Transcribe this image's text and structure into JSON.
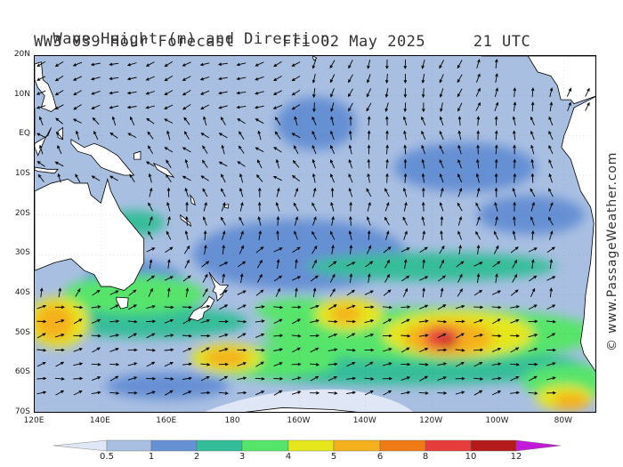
{
  "header": {
    "title_prefix": "Wave Height (m) and Direction",
    "model_label": "WW3 039 Hour Forecast",
    "valid_date": "Fri 02 May 2025",
    "valid_time": "21 UTC"
  },
  "map": {
    "latitude_labels": [
      "20N",
      "10N",
      "EQ",
      "10S",
      "20S",
      "30S",
      "40S",
      "50S",
      "60S",
      "70S"
    ],
    "latitude_values": [
      20,
      10,
      0,
      -10,
      -20,
      -30,
      -40,
      -50,
      -60,
      -70
    ],
    "longitude_labels": [
      "120E",
      "140E",
      "160E",
      "180",
      "160W",
      "140W",
      "120W",
      "100W",
      "80W"
    ],
    "longitude_values": [
      120,
      140,
      160,
      180,
      200,
      220,
      240,
      260,
      280
    ],
    "lat_range": [
      20,
      -70
    ],
    "lon_range": [
      120,
      290
    ],
    "dominant_direction": "north-east",
    "peak_area": "around 50S 115W"
  },
  "legend": {
    "labels": [
      "0.5",
      "1",
      "2",
      "3",
      "4",
      "5",
      "6",
      "8",
      "10",
      "12"
    ],
    "levels": [
      0.5,
      1,
      2,
      3,
      4,
      5,
      6,
      8,
      10,
      12
    ],
    "colors": [
      "#dfe6f5",
      "#a9bfe2",
      "#6690d4",
      "#34bd99",
      "#56e56b",
      "#e6e61c",
      "#f5b01e",
      "#f07a16",
      "#e63c3c",
      "#b51a1a",
      "#c21ad8"
    ]
  },
  "watermark": "© www.PassageWeather.com"
}
